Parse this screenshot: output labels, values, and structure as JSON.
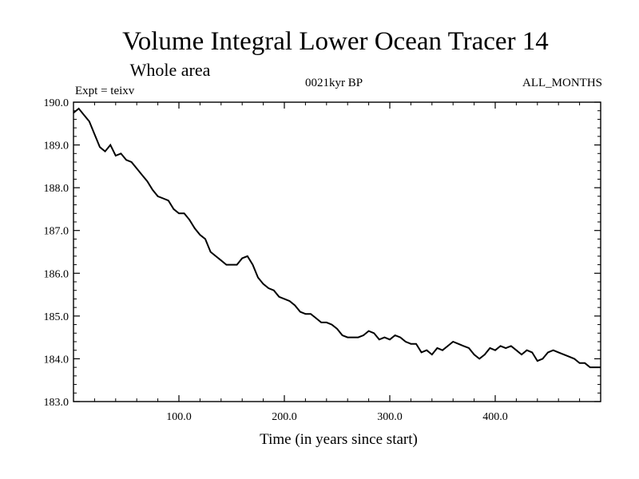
{
  "chart_data": {
    "type": "line",
    "title": "Volume Integral Lower Ocean Tracer 14",
    "subtitle": "Whole area",
    "experiment_label": "Expt = teixv",
    "period_label": "0021kyr BP",
    "months_label": "ALL_MONTHS",
    "xlabel": "Time (in years since start)",
    "ylabel": "",
    "xlim": [
      0,
      500
    ],
    "ylim": [
      183.0,
      190.0
    ],
    "x_ticks": [
      100,
      200,
      300,
      400
    ],
    "x_tick_labels": [
      "100.0",
      "200.0",
      "300.0",
      "400.0"
    ],
    "y_ticks": [
      183,
      184,
      185,
      186,
      187,
      188,
      189,
      190
    ],
    "y_tick_labels": [
      "183.0",
      "184.0",
      "185.0",
      "186.0",
      "187.0",
      "188.0",
      "189.0",
      "190.0"
    ],
    "grid": false,
    "line_color": "#000000",
    "series": [
      {
        "x": [
          0,
          5,
          10,
          15,
          20,
          25,
          30,
          35,
          40,
          45,
          50,
          55,
          60,
          65,
          70,
          75,
          80,
          85,
          90,
          95,
          100,
          105,
          110,
          115,
          120,
          125,
          130,
          135,
          140,
          145,
          150,
          155,
          160,
          165,
          170,
          175,
          180,
          185,
          190,
          195,
          200,
          205,
          210,
          215,
          220,
          225,
          230,
          235,
          240,
          245,
          250,
          255,
          260,
          265,
          270,
          275,
          280,
          285,
          290,
          295,
          300,
          305,
          310,
          315,
          320,
          325,
          330,
          335,
          340,
          345,
          350,
          355,
          360,
          365,
          370,
          375,
          380,
          385,
          390,
          395,
          400,
          405,
          410,
          415,
          420,
          425,
          430,
          435,
          440,
          445,
          450,
          455,
          460,
          465,
          470,
          475,
          480,
          485,
          490,
          495,
          500
        ],
        "values": [
          189.75,
          189.85,
          189.7,
          189.55,
          189.25,
          188.95,
          188.85,
          189.0,
          188.75,
          188.8,
          188.65,
          188.6,
          188.45,
          188.3,
          188.15,
          187.95,
          187.8,
          187.75,
          187.7,
          187.5,
          187.4,
          187.4,
          187.25,
          187.05,
          186.9,
          186.8,
          186.5,
          186.4,
          186.3,
          186.2,
          186.2,
          186.2,
          186.35,
          186.4,
          186.2,
          185.9,
          185.75,
          185.65,
          185.6,
          185.45,
          185.4,
          185.35,
          185.25,
          185.1,
          185.05,
          185.05,
          184.95,
          184.85,
          184.85,
          184.8,
          184.7,
          184.55,
          184.5,
          184.5,
          184.5,
          184.55,
          184.65,
          184.6,
          184.45,
          184.5,
          184.45,
          184.55,
          184.5,
          184.4,
          184.35,
          184.35,
          184.15,
          184.2,
          184.1,
          184.25,
          184.2,
          184.3,
          184.4,
          184.35,
          184.3,
          184.25,
          184.1,
          184.0,
          184.1,
          184.25,
          184.2,
          184.3,
          184.25,
          184.3,
          184.2,
          184.1,
          184.2,
          184.15,
          183.95,
          184.0,
          184.15,
          184.2,
          184.15,
          184.1,
          184.05,
          184.0,
          183.9,
          183.9,
          183.8,
          183.8,
          183.8
        ]
      }
    ]
  }
}
